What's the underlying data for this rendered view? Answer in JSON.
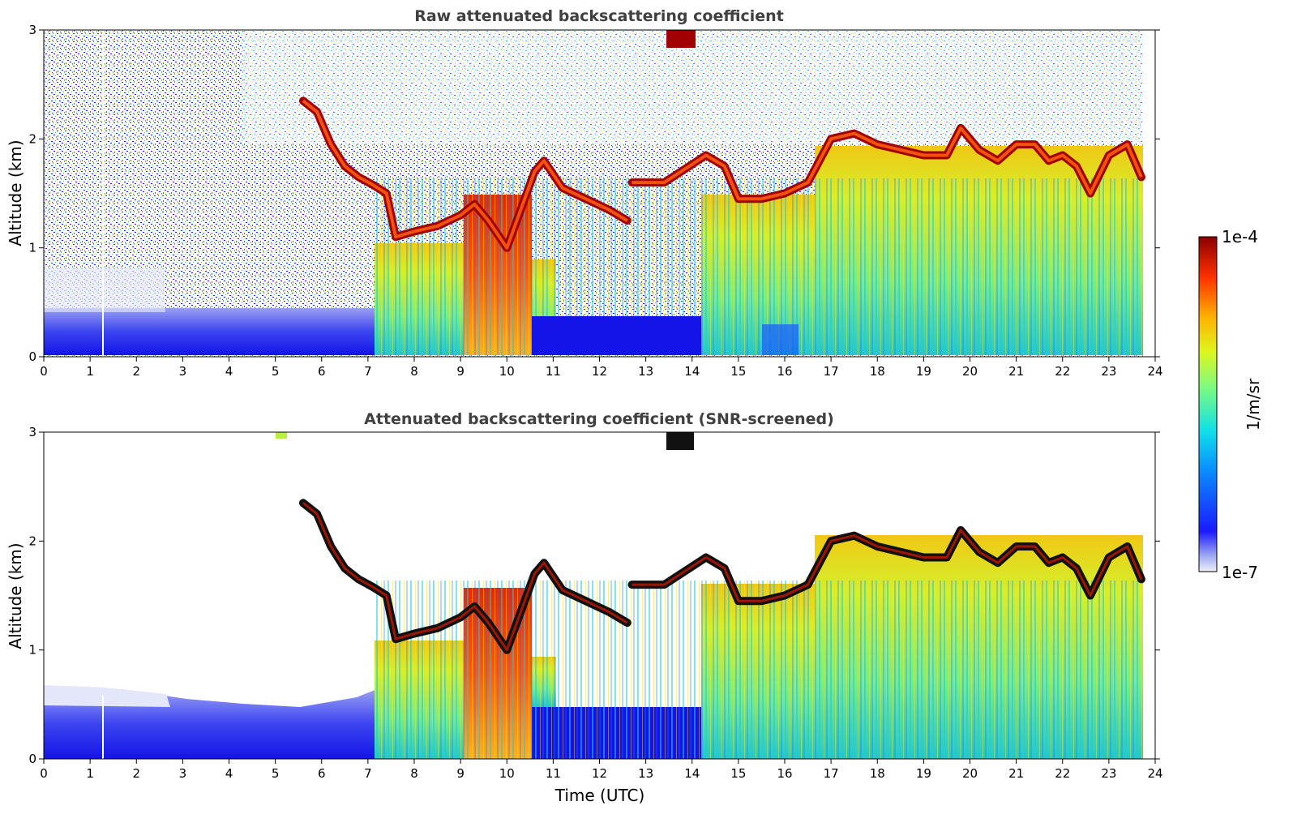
{
  "chart_data": [
    {
      "type": "heatmap",
      "title": "Raw attenuated backscattering coefficient",
      "xlabel": "",
      "ylabel": "Altitude (km)",
      "xlim": [
        0,
        24
      ],
      "ylim": [
        0,
        3
      ],
      "x_ticks": [
        "0",
        "1",
        "2",
        "3",
        "4",
        "5",
        "6",
        "7",
        "8",
        "9",
        "10",
        "11",
        "12",
        "13",
        "14",
        "15",
        "16",
        "17",
        "18",
        "19",
        "20",
        "21",
        "22",
        "23",
        "24"
      ],
      "y_ticks": [
        "0",
        "1",
        "2",
        "3"
      ],
      "screened": false,
      "cloud_top_km": [
        [
          5.6,
          2.35
        ],
        [
          5.9,
          2.25
        ],
        [
          6.2,
          1.95
        ],
        [
          6.5,
          1.75
        ],
        [
          6.8,
          1.65
        ],
        [
          7.1,
          1.58
        ],
        [
          7.4,
          1.5
        ],
        [
          7.6,
          1.1
        ],
        [
          8.0,
          1.15
        ],
        [
          8.5,
          1.2
        ],
        [
          9.0,
          1.3
        ],
        [
          9.3,
          1.4
        ],
        [
          9.6,
          1.25
        ],
        [
          10.0,
          1.0
        ],
        [
          10.3,
          1.35
        ],
        [
          10.6,
          1.7
        ],
        [
          10.8,
          1.8
        ],
        [
          11.2,
          1.55
        ],
        [
          11.7,
          1.45
        ],
        [
          12.2,
          1.35
        ],
        [
          12.6,
          1.25
        ],
        [
          12.7,
          1.6
        ],
        [
          13.4,
          1.6
        ],
        [
          14.3,
          1.85
        ],
        [
          14.7,
          1.75
        ],
        [
          15.0,
          1.45
        ],
        [
          15.5,
          1.45
        ],
        [
          16.0,
          1.5
        ],
        [
          16.5,
          1.6
        ],
        [
          17.0,
          2.0
        ],
        [
          17.5,
          2.05
        ],
        [
          18.0,
          1.95
        ],
        [
          18.5,
          1.9
        ],
        [
          19.0,
          1.85
        ],
        [
          19.5,
          1.85
        ],
        [
          19.8,
          2.1
        ],
        [
          20.2,
          1.9
        ],
        [
          20.6,
          1.8
        ],
        [
          21.0,
          1.95
        ],
        [
          21.4,
          1.95
        ],
        [
          21.7,
          1.8
        ],
        [
          22.0,
          1.85
        ],
        [
          22.3,
          1.75
        ],
        [
          22.6,
          1.5
        ],
        [
          23.0,
          1.85
        ],
        [
          23.4,
          1.95
        ],
        [
          23.7,
          1.65
        ]
      ]
    },
    {
      "type": "heatmap",
      "title": "Attenuated backscattering coefficient (SNR-screened)",
      "xlabel": "Time (UTC)",
      "ylabel": "Altitude (km)",
      "xlim": [
        0,
        24
      ],
      "ylim": [
        0,
        3
      ],
      "x_ticks": [
        "0",
        "1",
        "2",
        "3",
        "4",
        "5",
        "6",
        "7",
        "8",
        "9",
        "10",
        "11",
        "12",
        "13",
        "14",
        "15",
        "16",
        "17",
        "18",
        "19",
        "20",
        "21",
        "22",
        "23",
        "24"
      ],
      "y_ticks": [
        "0",
        "1",
        "2",
        "3"
      ],
      "screened": true
    }
  ],
  "colorbar": {
    "label": "1/m/sr",
    "min_label": "1e-7",
    "max_label": "1e-4",
    "colormap": "jet"
  }
}
